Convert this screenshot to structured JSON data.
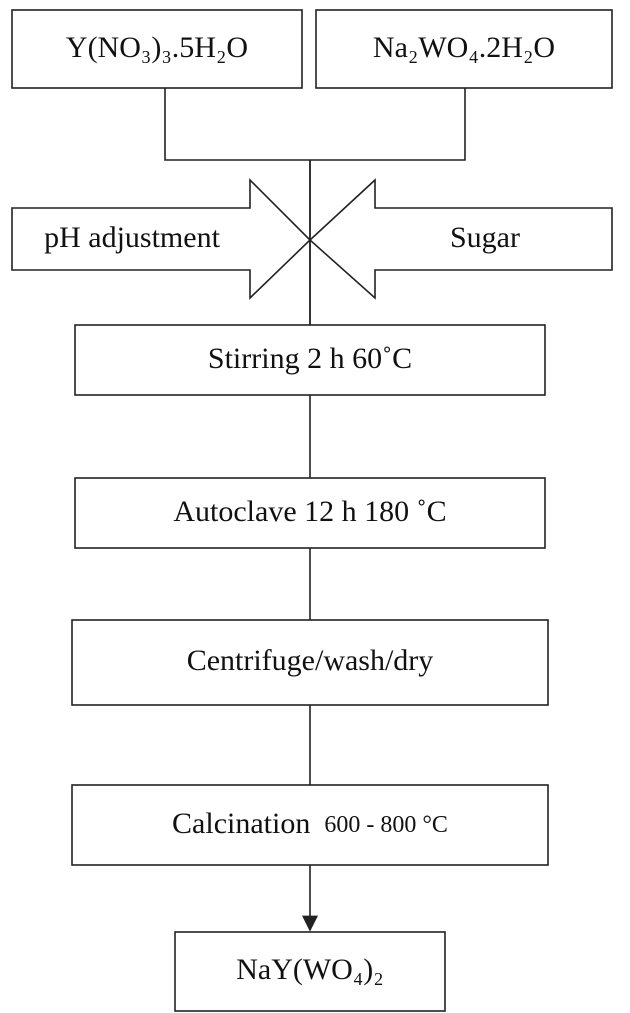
{
  "nodes": [
    {
      "label": "Y(NO₃)₃.5H₂O"
    },
    {
      "label": "Na₂WO₄.2H₂O"
    },
    {
      "label": "pH adjustment"
    },
    {
      "label": "Sugar"
    },
    {
      "label": "Stirring 2 h 60˚C"
    },
    {
      "label": "Autoclave  12 h 180 ˚C"
    },
    {
      "label": "Centrifuge/wash/dry"
    },
    {
      "label": "Calcination",
      "detail": "600 - 800 °C"
    },
    {
      "label": "NaY(WO₄)₂"
    }
  ]
}
